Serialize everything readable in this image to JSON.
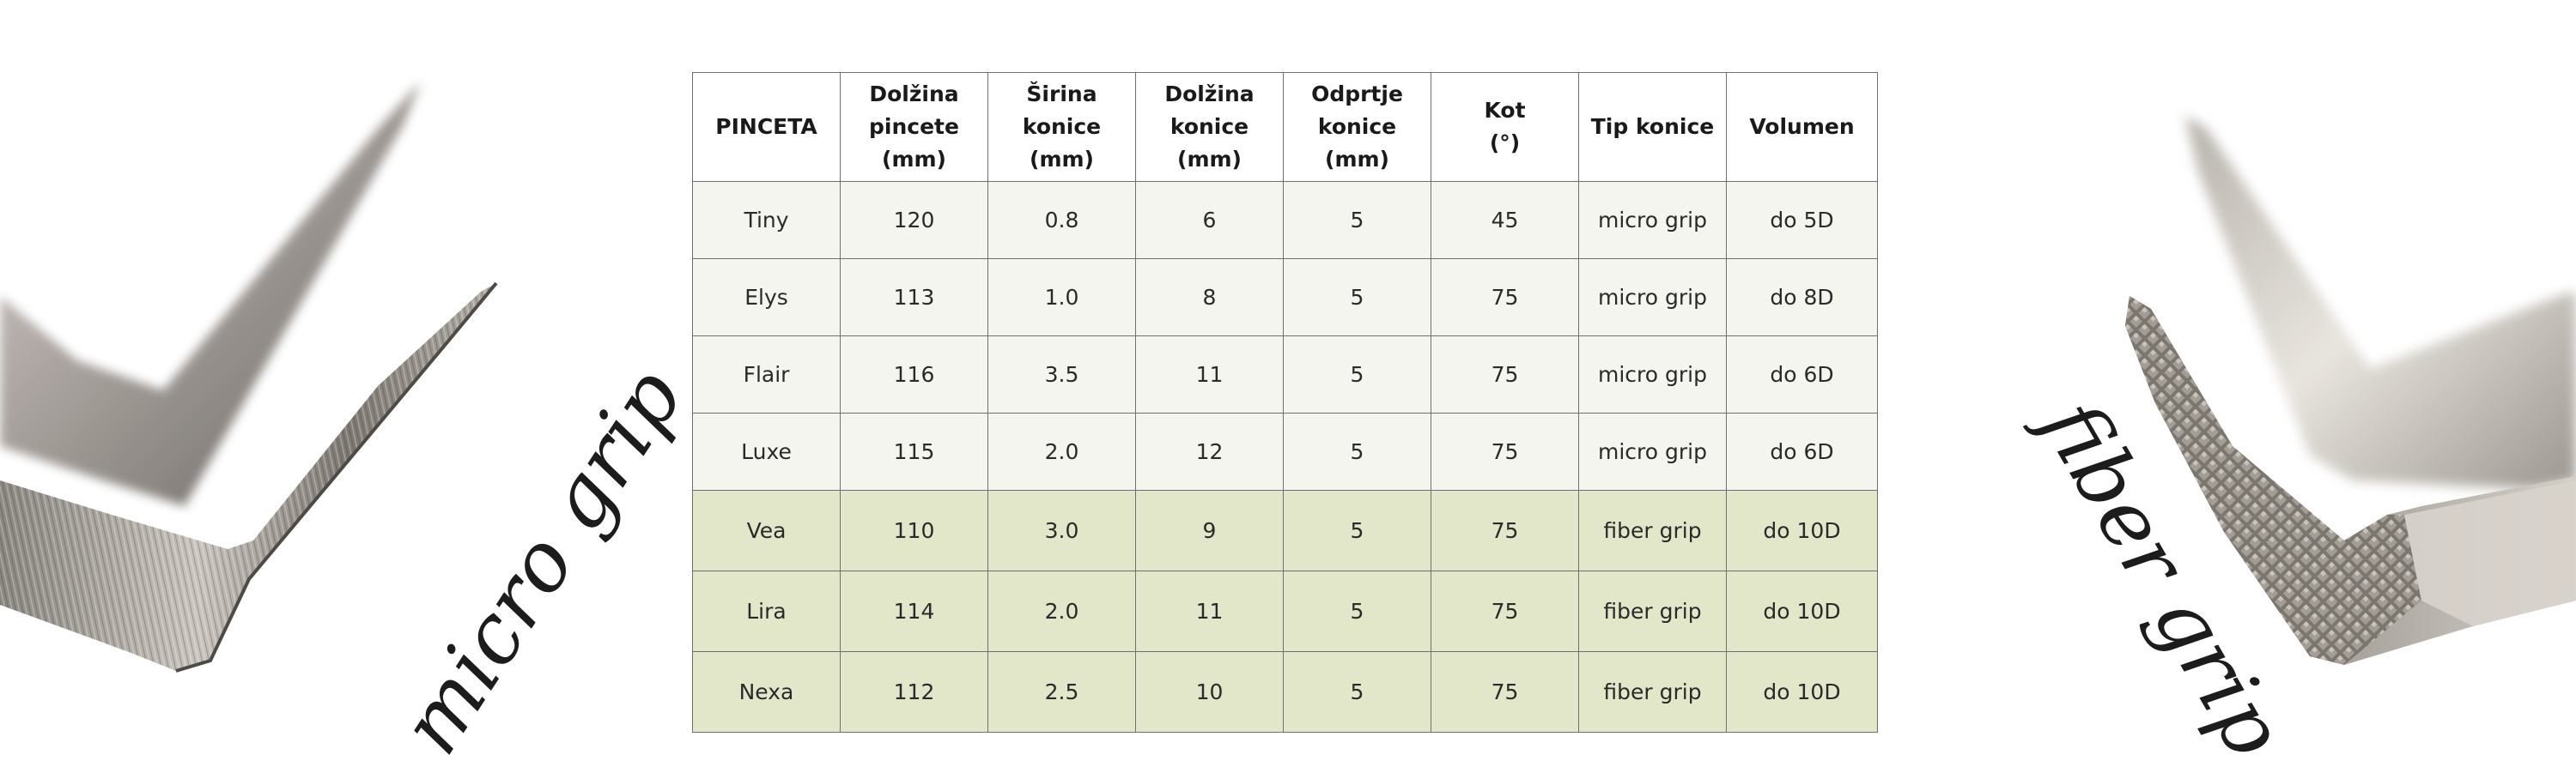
{
  "labels": {
    "left": "micro grip",
    "right": "fiber grip"
  },
  "table": {
    "headers": [
      [
        "PINCETA"
      ],
      [
        "Dolžina",
        "pincete",
        "(mm)"
      ],
      [
        "Širina",
        "konice",
        "(mm)"
      ],
      [
        "Dolžina",
        "konice",
        "(mm)"
      ],
      [
        "Odprtje",
        "konice",
        "(mm)"
      ],
      [
        "Kot",
        "(°)"
      ],
      [
        "Tip konice"
      ],
      [
        "Volumen"
      ]
    ],
    "rows": [
      {
        "name": "Tiny",
        "length": "120",
        "tip_width": "0.8",
        "tip_length": "6",
        "opening": "5",
        "angle": "45",
        "tip_type": "micro grip",
        "volume": "do 5D"
      },
      {
        "name": "Elys",
        "length": "113",
        "tip_width": "1.0",
        "tip_length": "8",
        "opening": "5",
        "angle": "75",
        "tip_type": "micro grip",
        "volume": "do 8D"
      },
      {
        "name": "Flair",
        "length": "116",
        "tip_width": "3.5",
        "tip_length": "11",
        "opening": "5",
        "angle": "75",
        "tip_type": "micro grip",
        "volume": "do 6D"
      },
      {
        "name": "Luxe",
        "length": "115",
        "tip_width": "2.0",
        "tip_length": "12",
        "opening": "5",
        "angle": "75",
        "tip_type": "micro grip",
        "volume": "do 6D"
      },
      {
        "name": "Vea",
        "length": "110",
        "tip_width": "3.0",
        "tip_length": "9",
        "opening": "5",
        "angle": "75",
        "tip_type": "fiber grip",
        "volume": "do 10D"
      },
      {
        "name": "Lira",
        "length": "114",
        "tip_width": "2.0",
        "tip_length": "11",
        "opening": "5",
        "angle": "75",
        "tip_type": "fiber grip",
        "volume": "do 10D"
      },
      {
        "name": "Nexa",
        "length": "112",
        "tip_width": "2.5",
        "tip_length": "10",
        "opening": "5",
        "angle": "75",
        "tip_type": "fiber grip",
        "volume": "do 10D"
      }
    ]
  },
  "colors": {
    "micro_row_bg": "#f4f5ef",
    "fiber_row_bg": "#e2e7c9",
    "border": "#6f6f6f"
  }
}
